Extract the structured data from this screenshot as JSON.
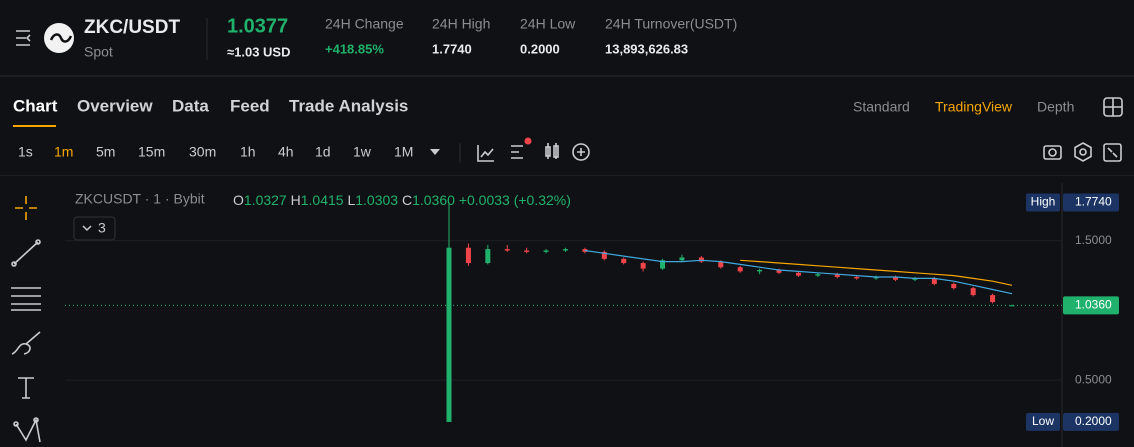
{
  "header": {
    "pair": "ZKC/USDT",
    "market": "Spot",
    "price": "1.0377",
    "price_usd": "≈1.03 USD",
    "stats": [
      {
        "label": "24H Change",
        "value": "+418.85%"
      },
      {
        "label": "24H High",
        "value": "1.7740"
      },
      {
        "label": "24H Low",
        "value": "0.2000"
      },
      {
        "label": "24H Turnover(USDT)",
        "value": "13,893,626.83"
      }
    ]
  },
  "tabs": [
    "Chart",
    "Overview",
    "Data",
    "Feed",
    "Trade Analysis"
  ],
  "views": [
    "Standard",
    "TradingView",
    "Depth"
  ],
  "intervals": [
    "1s",
    "1m",
    "5m",
    "15m",
    "30m",
    "1h",
    "4h",
    "1d",
    "1w",
    "1M"
  ],
  "legend": {
    "symbol": "ZKCUSDT · 1 · Bybit",
    "ohlc": [
      "O",
      "1.0327",
      "H",
      "1.0415",
      "L",
      "1.0303",
      "C",
      "1.0360"
    ],
    "change": "+0.0033 (+0.32%)",
    "indicators": "3"
  },
  "chart_data": {
    "type": "candlestick",
    "open": [
      0.2,
      1.45,
      1.34,
      1.44,
      1.43,
      1.42,
      1.43,
      1.44,
      1.42,
      1.37,
      1.34,
      1.3,
      1.36,
      1.38,
      1.35,
      1.31,
      1.28,
      1.29,
      1.27,
      1.25,
      1.26,
      1.24,
      1.23,
      1.24,
      1.22,
      1.23,
      1.19,
      1.16,
      1.11,
      1.0327
    ],
    "high": [
      1.774,
      1.48,
      1.47,
      1.47,
      1.45,
      1.44,
      1.45,
      1.45,
      1.43,
      1.38,
      1.35,
      1.37,
      1.4,
      1.39,
      1.36,
      1.32,
      1.3,
      1.3,
      1.28,
      1.27,
      1.27,
      1.25,
      1.25,
      1.25,
      1.24,
      1.24,
      1.2,
      1.17,
      1.12,
      1.0415
    ],
    "low": [
      0.2,
      1.32,
      1.33,
      1.42,
      1.41,
      1.41,
      1.42,
      1.41,
      1.36,
      1.33,
      1.28,
      1.29,
      1.35,
      1.34,
      1.3,
      1.27,
      1.26,
      1.26,
      1.24,
      1.24,
      1.23,
      1.22,
      1.22,
      1.21,
      1.21,
      1.18,
      1.15,
      1.1,
      1.05,
      1.0303
    ],
    "close": [
      1.45,
      1.34,
      1.44,
      1.43,
      1.42,
      1.43,
      1.44,
      1.42,
      1.37,
      1.34,
      1.3,
      1.36,
      1.38,
      1.35,
      1.31,
      1.28,
      1.29,
      1.27,
      1.25,
      1.26,
      1.24,
      1.23,
      1.24,
      1.22,
      1.23,
      1.19,
      1.16,
      1.11,
      1.06,
      1.036
    ],
    "up_color": "#20b26c",
    "down_color": "#ef454a",
    "series": [
      {
        "color": "#3fa9e0",
        "values": [
          null,
          null,
          null,
          null,
          null,
          null,
          null,
          1.43,
          1.41,
          1.39,
          1.37,
          1.35,
          1.35,
          1.36,
          1.35,
          1.33,
          1.31,
          1.29,
          1.28,
          1.27,
          1.26,
          1.25,
          1.24,
          1.24,
          1.23,
          1.23,
          1.21,
          1.18,
          1.15,
          1.12
        ]
      },
      {
        "color": "#f7a600",
        "values": [
          null,
          null,
          null,
          null,
          null,
          null,
          null,
          null,
          null,
          null,
          null,
          null,
          null,
          null,
          null,
          1.36,
          1.35,
          1.34,
          1.33,
          1.32,
          1.31,
          1.3,
          1.29,
          1.28,
          1.27,
          1.26,
          1.25,
          1.23,
          1.21,
          1.18
        ]
      }
    ],
    "ylim": [
      0.02,
      1.9
    ],
    "yticks": [
      {
        "value": 1.5,
        "label": "1.5000"
      },
      {
        "value": 0.5,
        "label": "0.5000"
      }
    ],
    "grid": true,
    "markers": [
      {
        "name": "High",
        "value": 1.774,
        "label": "1.7740",
        "color": "#1c3464"
      },
      {
        "value": 1.036,
        "label": "1.0360",
        "color": "#20b26c"
      },
      {
        "name": "Low",
        "value": 0.2,
        "label": "0.2000",
        "color": "#1c3464"
      }
    ]
  }
}
